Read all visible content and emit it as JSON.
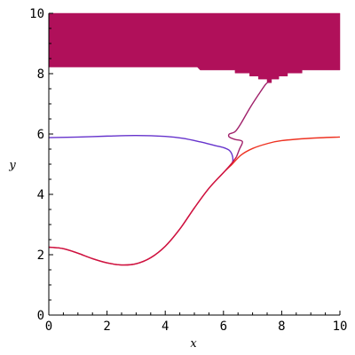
{
  "chart_data": {
    "type": "line",
    "title": "",
    "xlabel": "x",
    "ylabel": "y",
    "xlim": [
      0,
      10
    ],
    "ylim": [
      0,
      10
    ],
    "xticks": [
      0,
      2,
      4,
      6,
      8,
      10
    ],
    "yticks": [
      0,
      2,
      4,
      6,
      8,
      10
    ],
    "xtick_labels": [
      "0",
      "2",
      "4",
      "6",
      "8",
      "10"
    ],
    "ytick_labels": [
      "0",
      "2",
      "4",
      "6",
      "8",
      "10"
    ],
    "minor_tick_step": 0.5,
    "grid": false,
    "legend": "none",
    "colors": {
      "region": "#b0105a",
      "blue_curve": "#6633cc",
      "red_curve": "#ee3322",
      "crimson_curve": "#cc1144",
      "magenta_curve": "#a0206a"
    },
    "region": {
      "upper_y": 10,
      "lower_edge": [
        {
          "x": 0.0,
          "y": 8.22
        },
        {
          "x": 5.1,
          "y": 8.22
        },
        {
          "x": 5.2,
          "y": 8.12
        },
        {
          "x": 6.4,
          "y": 8.12
        },
        {
          "x": 6.4,
          "y": 8.02
        },
        {
          "x": 6.9,
          "y": 8.02
        },
        {
          "x": 6.9,
          "y": 7.92
        },
        {
          "x": 7.2,
          "y": 7.92
        },
        {
          "x": 7.2,
          "y": 7.82
        },
        {
          "x": 7.5,
          "y": 7.82
        },
        {
          "x": 7.5,
          "y": 7.7
        },
        {
          "x": 7.65,
          "y": 7.7
        },
        {
          "x": 7.65,
          "y": 7.82
        },
        {
          "x": 7.9,
          "y": 7.82
        },
        {
          "x": 7.9,
          "y": 7.92
        },
        {
          "x": 8.2,
          "y": 7.92
        },
        {
          "x": 8.2,
          "y": 8.02
        },
        {
          "x": 8.7,
          "y": 8.02
        },
        {
          "x": 8.7,
          "y": 8.12
        },
        {
          "x": 10.0,
          "y": 8.12
        }
      ]
    },
    "series": [
      {
        "color_key": "blue_curve",
        "points": [
          {
            "x": 0.0,
            "y": 5.88
          },
          {
            "x": 1.0,
            "y": 5.9
          },
          {
            "x": 2.0,
            "y": 5.93
          },
          {
            "x": 3.0,
            "y": 5.95
          },
          {
            "x": 4.0,
            "y": 5.92
          },
          {
            "x": 4.6,
            "y": 5.86
          },
          {
            "x": 5.2,
            "y": 5.74
          },
          {
            "x": 5.7,
            "y": 5.62
          },
          {
            "x": 6.0,
            "y": 5.55
          },
          {
            "x": 6.2,
            "y": 5.46
          },
          {
            "x": 6.3,
            "y": 5.3
          },
          {
            "x": 6.32,
            "y": 5.1
          },
          {
            "x": 6.25,
            "y": 4.95
          }
        ]
      },
      {
        "color_key": "red_curve",
        "points": [
          {
            "x": 0.0,
            "y": 2.25
          },
          {
            "x": 0.5,
            "y": 2.2
          },
          {
            "x": 1.0,
            "y": 2.05
          },
          {
            "x": 1.5,
            "y": 1.87
          },
          {
            "x": 2.0,
            "y": 1.73
          },
          {
            "x": 2.5,
            "y": 1.66
          },
          {
            "x": 3.0,
            "y": 1.7
          },
          {
            "x": 3.5,
            "y": 1.9
          },
          {
            "x": 4.0,
            "y": 2.28
          },
          {
            "x": 4.5,
            "y": 2.85
          },
          {
            "x": 5.0,
            "y": 3.55
          },
          {
            "x": 5.5,
            "y": 4.2
          },
          {
            "x": 6.0,
            "y": 4.72
          },
          {
            "x": 6.3,
            "y": 5.0
          },
          {
            "x": 6.6,
            "y": 5.3
          },
          {
            "x": 7.0,
            "y": 5.52
          },
          {
            "x": 7.5,
            "y": 5.68
          },
          {
            "x": 8.0,
            "y": 5.78
          },
          {
            "x": 9.0,
            "y": 5.86
          },
          {
            "x": 10.0,
            "y": 5.9
          }
        ]
      },
      {
        "color_key": "crimson_curve",
        "points": [
          {
            "x": 0.0,
            "y": 2.25
          },
          {
            "x": 0.5,
            "y": 2.2
          },
          {
            "x": 1.0,
            "y": 2.05
          },
          {
            "x": 1.5,
            "y": 1.87
          },
          {
            "x": 2.0,
            "y": 1.73
          },
          {
            "x": 2.5,
            "y": 1.66
          },
          {
            "x": 3.0,
            "y": 1.7
          },
          {
            "x": 3.5,
            "y": 1.9
          },
          {
            "x": 4.0,
            "y": 2.28
          },
          {
            "x": 4.5,
            "y": 2.85
          },
          {
            "x": 5.0,
            "y": 3.55
          },
          {
            "x": 5.5,
            "y": 4.2
          },
          {
            "x": 6.0,
            "y": 4.72
          },
          {
            "x": 6.3,
            "y": 5.05
          },
          {
            "x": 6.45,
            "y": 5.25
          }
        ]
      },
      {
        "color_key": "magenta_curve",
        "points": [
          {
            "x": 6.45,
            "y": 5.25
          },
          {
            "x": 6.55,
            "y": 5.5
          },
          {
            "x": 6.65,
            "y": 5.75
          },
          {
            "x": 6.4,
            "y": 5.82
          },
          {
            "x": 6.2,
            "y": 5.9
          },
          {
            "x": 6.2,
            "y": 6.0
          },
          {
            "x": 6.4,
            "y": 6.08
          },
          {
            "x": 6.6,
            "y": 6.35
          },
          {
            "x": 6.9,
            "y": 6.85
          },
          {
            "x": 7.2,
            "y": 7.3
          },
          {
            "x": 7.45,
            "y": 7.65
          },
          {
            "x": 7.55,
            "y": 7.72
          }
        ]
      }
    ]
  }
}
